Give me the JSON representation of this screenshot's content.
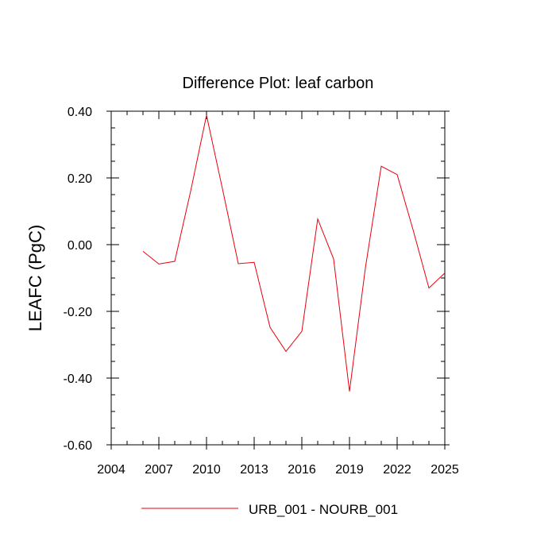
{
  "chart_data": {
    "type": "line",
    "title": "Difference Plot: leaf carbon",
    "xlabel": "",
    "ylabel": "LEAFC  (PgC)",
    "xlim": [
      2004,
      2025
    ],
    "ylim": [
      -0.6,
      0.4
    ],
    "x_ticks": [
      2004,
      2007,
      2010,
      2013,
      2016,
      2019,
      2022,
      2025
    ],
    "x_tick_labels": [
      "2004",
      "2007",
      "2010",
      "2013",
      "2016",
      "2019",
      "2022",
      "2025"
    ],
    "y_ticks": [
      -0.6,
      -0.4,
      -0.2,
      0.0,
      0.2,
      0.4
    ],
    "y_tick_labels": [
      "-0.60",
      "-0.40",
      "-0.20",
      "0.00",
      "0.20",
      "0.40"
    ],
    "grid": false,
    "legend_position": "bottom",
    "series": [
      {
        "name": "URB_001 - NOURB_001",
        "color": "#e8000b",
        "x": [
          2006,
          2007,
          2008,
          2009,
          2010,
          2011,
          2012,
          2013,
          2014,
          2015,
          2016,
          2017,
          2018,
          2019,
          2020,
          2021,
          2022,
          2023,
          2024,
          2025
        ],
        "values": [
          -0.02,
          -0.058,
          -0.05,
          0.16,
          0.388,
          0.168,
          -0.057,
          -0.053,
          -0.248,
          -0.32,
          -0.26,
          0.077,
          -0.043,
          -0.44,
          -0.07,
          0.235,
          0.21,
          0.045,
          -0.13,
          -0.085
        ]
      }
    ]
  }
}
